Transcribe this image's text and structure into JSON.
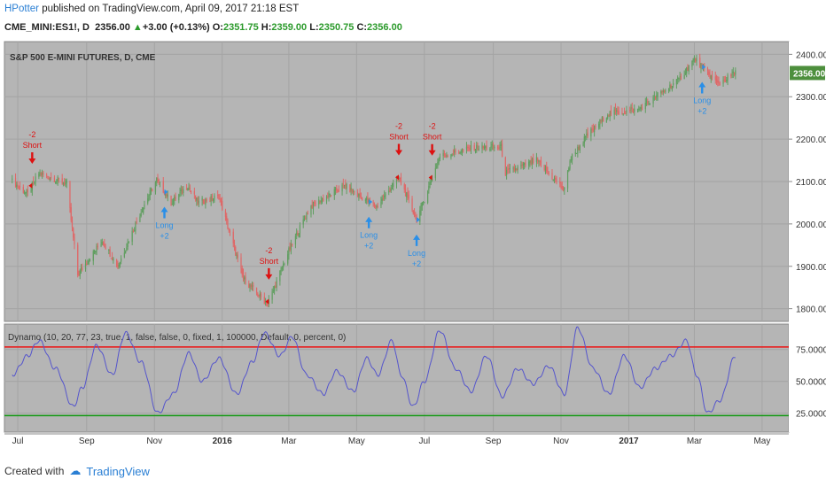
{
  "header": {
    "author": "HPotter",
    "published": " published on TradingView.com, April 09, 2017 21:18 EST",
    "symbol": "CME_MINI:ES1!, D",
    "last": "2356.00",
    "change": "+3.00 (+0.13%)",
    "o_label": "O:",
    "o_val": "2351.75",
    "h_label": "H:",
    "h_val": "2359.00",
    "l_label": "L:",
    "l_val": "2350.75",
    "c_label": "C:",
    "c_val": "2356.00"
  },
  "price_pane": {
    "title": "S&P 500 E-MINI FUTURES, D, CME",
    "last_price_tag": "2356.00"
  },
  "osc_pane": {
    "title": "Dynamo (10, 20, 77, 23, true, 1, false, false, 0, fixed, 1, 100000, Default, 0, percent, 0)"
  },
  "footer": {
    "created_with": "Created with",
    "brand": "TradingView"
  },
  "colors": {
    "bg_pane": "#b5b5b5",
    "bull": "#5f9e5f",
    "bear": "#e06666",
    "signal_short": "#dd1111",
    "signal_long": "#2a8fe8",
    "osc_line": "#5555cc",
    "upper_band": "#ee1111",
    "lower_band": "#119911"
  },
  "chart_data": [
    {
      "type": "candlestick",
      "title": "S&P 500 E-MINI FUTURES, D, CME",
      "x_ticks": [
        "Jul",
        "Sep",
        "Nov",
        "2016",
        "Mar",
        "May",
        "Jul",
        "Sep",
        "Nov",
        "2017",
        "Mar",
        "May"
      ],
      "y_ticks": [
        1800,
        1900,
        2000,
        2100,
        2200,
        2300,
        2400
      ],
      "ylim": [
        1770,
        2430
      ],
      "close_path": {
        "x": [
          "2015-06-26",
          "2015-07-10",
          "2015-07-20",
          "2015-08-14",
          "2015-08-24",
          "2015-09-15",
          "2015-09-29",
          "2015-10-20",
          "2015-11-03",
          "2015-11-16",
          "2015-12-01",
          "2015-12-10",
          "2015-12-29",
          "2016-01-20",
          "2016-02-11",
          "2016-02-29",
          "2016-03-20",
          "2016-04-20",
          "2016-05-19",
          "2016-06-08",
          "2016-06-24",
          "2016-06-27",
          "2016-07-15",
          "2016-08-15",
          "2016-09-08",
          "2016-09-12",
          "2016-10-10",
          "2016-11-04",
          "2016-11-09",
          "2016-11-22",
          "2016-12-13",
          "2017-01-10",
          "2017-02-15",
          "2017-03-01",
          "2017-03-22",
          "2017-04-07"
        ],
        "y": [
          2100,
          2070,
          2120,
          2095,
          1880,
          1960,
          1900,
          2030,
          2105,
          2050,
          2090,
          2050,
          2065,
          1870,
          1810,
          1930,
          2040,
          2090,
          2040,
          2110,
          2010,
          2030,
          2160,
          2180,
          2180,
          2120,
          2150,
          2080,
          2150,
          2200,
          2260,
          2270,
          2340,
          2390,
          2330,
          2356
        ]
      },
      "signals": [
        {
          "x": "2015-07-14",
          "type": "Short",
          "label": "-2",
          "side": "Short"
        },
        {
          "x": "2015-11-10",
          "type": "Long",
          "label": "+2",
          "side": "Long"
        },
        {
          "x": "2016-02-12",
          "type": "Short",
          "label": "-2",
          "side": "Short"
        },
        {
          "x": "2016-05-12",
          "type": "Long",
          "label": "+2",
          "side": "Long"
        },
        {
          "x": "2016-06-08",
          "type": "Short",
          "label": "-2",
          "side": "Short"
        },
        {
          "x": "2016-06-24",
          "type": "Long",
          "label": "+2",
          "side": "Long"
        },
        {
          "x": "2016-07-08",
          "type": "Short",
          "label": "-2",
          "side": "Short"
        },
        {
          "x": "2017-03-08",
          "type": "Long",
          "label": "+2",
          "side": "Long"
        }
      ]
    },
    {
      "type": "line",
      "title": "Dynamo (10, 20, 77, 23, true, 1, false, false, 0, fixed, 1, 100000, Default, 0, percent, 0)",
      "y_ticks": [
        "25.0000",
        "50.0000",
        "75.0000"
      ],
      "ylim": [
        10,
        95
      ],
      "bands": {
        "upper": 77,
        "lower": 23
      },
      "series": [
        {
          "x": [
            "2015-06-26",
            "2015-07-10",
            "2015-07-20",
            "2015-08-04",
            "2015-08-20",
            "2015-08-28",
            "2015-09-10",
            "2015-09-24",
            "2015-10-06",
            "2015-10-20",
            "2015-11-04",
            "2015-11-18",
            "2015-12-02",
            "2015-12-14",
            "2015-12-29",
            "2016-01-14",
            "2016-01-28",
            "2016-02-08",
            "2016-02-22",
            "2016-03-04",
            "2016-03-17",
            "2016-04-01",
            "2016-04-13",
            "2016-04-28",
            "2016-05-10",
            "2016-05-20",
            "2016-06-02",
            "2016-06-10",
            "2016-06-21",
            "2016-07-01",
            "2016-07-15",
            "2016-07-29",
            "2016-08-12",
            "2016-08-26",
            "2016-09-09",
            "2016-09-23",
            "2016-10-07",
            "2016-10-21",
            "2016-11-04",
            "2016-11-16",
            "2016-11-30",
            "2016-12-14",
            "2016-12-28",
            "2017-01-11",
            "2017-01-25",
            "2017-02-08",
            "2017-02-22",
            "2017-03-03",
            "2017-03-13",
            "2017-03-24",
            "2017-04-07"
          ],
          "y": [
            55,
            70,
            82,
            60,
            30,
            45,
            78,
            55,
            88,
            65,
            25,
            40,
            72,
            50,
            68,
            40,
            65,
            88,
            70,
            85,
            55,
            40,
            58,
            42,
            68,
            55,
            82,
            55,
            30,
            50,
            90,
            60,
            42,
            70,
            38,
            60,
            48,
            62,
            40,
            92,
            60,
            40,
            70,
            45,
            60,
            70,
            82,
            55,
            25,
            35,
            70
          ]
        }
      ]
    }
  ]
}
